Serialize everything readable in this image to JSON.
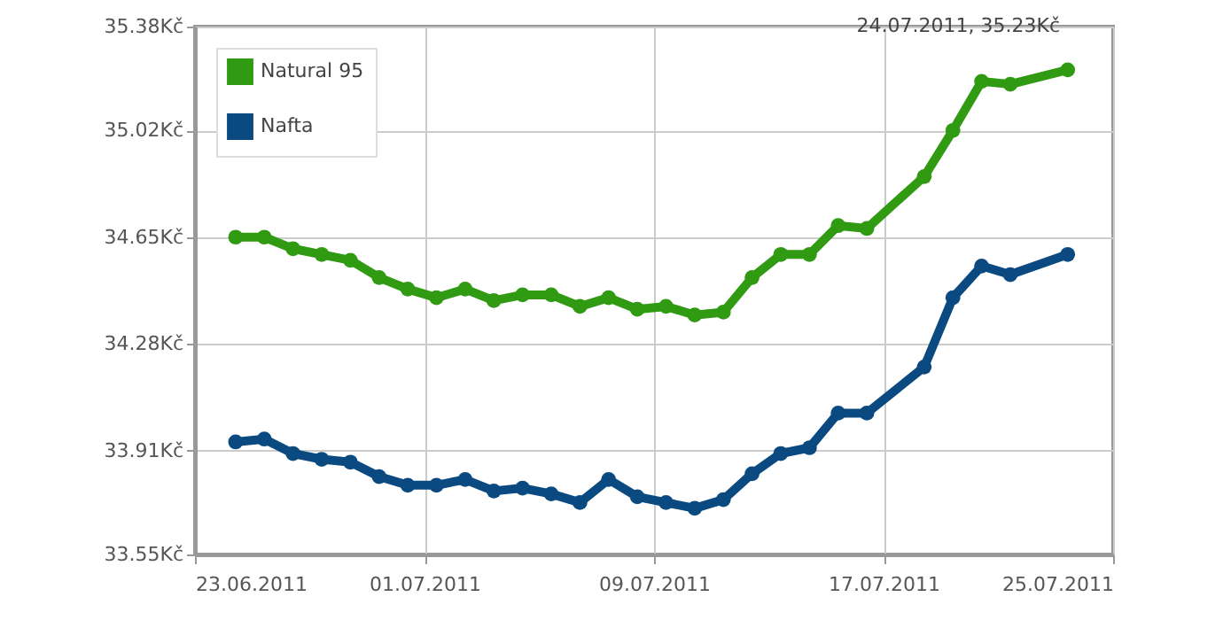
{
  "chart_data": {
    "type": "line",
    "x": [
      "2011-06-24T10:00",
      "2011-06-25T10:00",
      "2011-06-26T10:00",
      "2011-06-27T10:00",
      "2011-06-28T10:00",
      "2011-06-29T10:00",
      "2011-06-30T10:00",
      "2011-07-01T10:00",
      "2011-07-02T10:00",
      "2011-07-03T10:00",
      "2011-07-04T10:00",
      "2011-07-05T10:00",
      "2011-07-06T10:00",
      "2011-07-07T10:00",
      "2011-07-08T10:00",
      "2011-07-09T10:00",
      "2011-07-10T10:00",
      "2011-07-11T10:00",
      "2011-07-12T10:00",
      "2011-07-13T10:00",
      "2011-07-14T10:00",
      "2011-07-15T10:00",
      "2011-07-16T10:00",
      "2011-07-18T10:00",
      "2011-07-19T10:00",
      "2011-07-20T10:00",
      "2011-07-21T10:00",
      "2011-07-23T10:00"
    ],
    "series": [
      {
        "name": "Natural 95",
        "color": "#2f9a12",
        "values": [
          34.65,
          34.65,
          34.61,
          34.59,
          34.57,
          34.51,
          34.47,
          34.44,
          34.47,
          34.43,
          34.45,
          34.45,
          34.41,
          34.44,
          34.4,
          34.41,
          34.38,
          34.39,
          34.51,
          34.59,
          34.59,
          34.69,
          34.68,
          34.86,
          35.02,
          35.19,
          35.18,
          35.23
        ]
      },
      {
        "name": "Nafta",
        "color": "#0b4a80",
        "values": [
          33.94,
          33.95,
          33.9,
          33.88,
          33.87,
          33.82,
          33.79,
          33.79,
          33.81,
          33.77,
          33.78,
          33.76,
          33.73,
          33.81,
          33.75,
          33.73,
          33.71,
          33.74,
          33.83,
          33.9,
          33.92,
          34.04,
          34.04,
          34.2,
          34.44,
          34.55,
          34.52,
          34.59
        ]
      }
    ],
    "xlim": [
      "2011-06-23",
      "2011-07-25"
    ],
    "xticks": [
      {
        "value": "2011-06-23",
        "label": "23.06.2011"
      },
      {
        "value": "2011-07-01",
        "label": "01.07.2011"
      },
      {
        "value": "2011-07-09",
        "label": "09.07.2011"
      },
      {
        "value": "2011-07-17",
        "label": "17.07.2011"
      },
      {
        "value": "2011-07-25",
        "label": "25.07.2011"
      }
    ],
    "ylim": [
      33.55,
      35.38
    ],
    "yticks": [
      {
        "value": 33.55,
        "label": "33.55Kč"
      },
      {
        "value": 33.91,
        "label": "33.91Kč"
      },
      {
        "value": 34.28,
        "label": "34.28Kč"
      },
      {
        "value": 34.65,
        "label": "34.65Kč"
      },
      {
        "value": 35.02,
        "label": "35.02Kč"
      },
      {
        "value": 35.38,
        "label": "35.38Kč"
      }
    ],
    "annotations": [
      "24.07.2011, 35.23Kč"
    ],
    "grid": true,
    "legend": "top left",
    "marker": "circle",
    "line_style": "solid"
  }
}
